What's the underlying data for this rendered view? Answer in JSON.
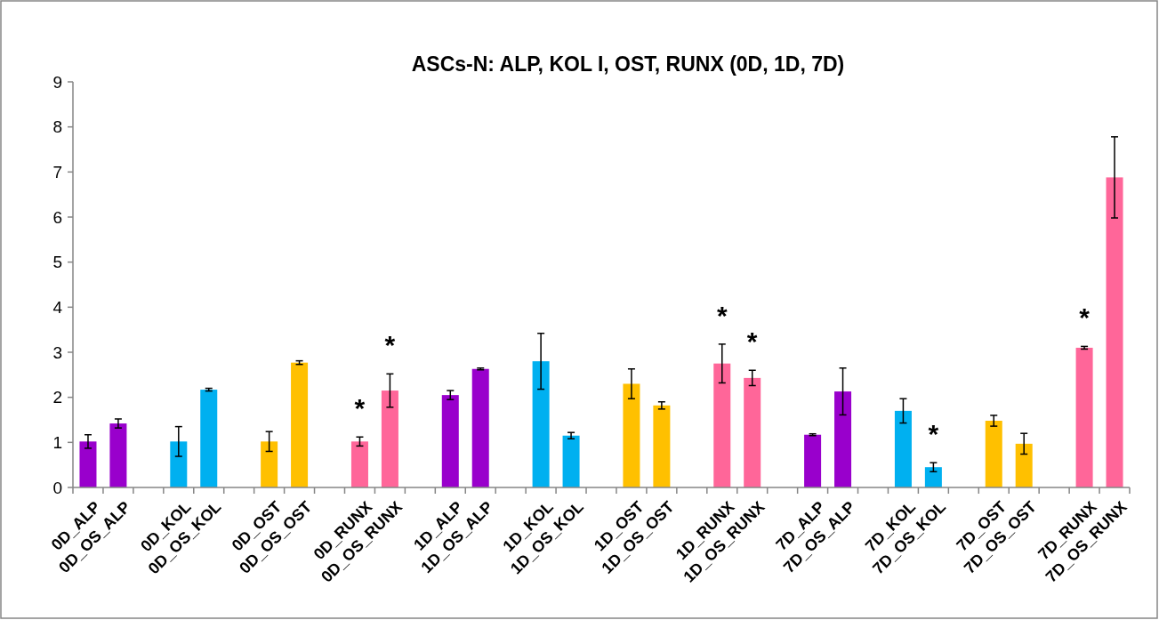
{
  "chart_data": {
    "type": "bar",
    "title": "ASCs-N: ALP, KOL I, OST, RUNX (0D, 1D, 7D)",
    "categories": [
      "0D_ALP",
      "0D_OS_ALP",
      null,
      "0D_KOL",
      "0D_OS_KOL",
      null,
      "0D_OST",
      "0D_OS_OST",
      null,
      "0D_RUNX",
      "0D_OS_RUNX",
      null,
      "1D_ALP",
      "1D_OS_ALP",
      null,
      "1D_KOL",
      "1D_OS_KOL",
      null,
      "1D_OST",
      "1D_OS_OST",
      null,
      "1D_RUNX",
      "1D_OS_RUNX",
      null,
      "7D_ALP",
      "7D_OS_ALP",
      null,
      "7D_KOL",
      "7D_OS_KOL",
      null,
      "7D_OST",
      "7D_OS_OST",
      null,
      "7D_RUNX",
      "7D_OS_RUNX"
    ],
    "values": [
      1.02,
      1.42,
      null,
      1.02,
      2.17,
      null,
      1.02,
      2.77,
      null,
      1.02,
      2.15,
      null,
      2.05,
      2.63,
      null,
      2.8,
      1.15,
      null,
      2.3,
      1.82,
      null,
      2.75,
      2.43,
      null,
      1.17,
      2.13,
      null,
      1.7,
      0.45,
      null,
      1.48,
      0.97,
      null,
      3.1,
      6.88
    ],
    "errors": [
      0.15,
      0.1,
      null,
      0.33,
      0.03,
      null,
      0.22,
      0.04,
      null,
      0.1,
      0.37,
      null,
      0.1,
      0.02,
      null,
      0.62,
      0.07,
      null,
      0.33,
      0.08,
      null,
      0.43,
      0.17,
      null,
      0.02,
      0.52,
      null,
      0.27,
      0.1,
      null,
      0.12,
      0.23,
      null,
      0.03,
      0.9
    ],
    "colors": [
      "#9900cc",
      "#9900cc",
      null,
      "#00b0f0",
      "#00b0f0",
      null,
      "#ffc000",
      "#ffc000",
      null,
      "#ff6699",
      "#ff6699",
      null,
      "#9900cc",
      "#9900cc",
      null,
      "#00b0f0",
      "#00b0f0",
      null,
      "#ffc000",
      "#ffc000",
      null,
      "#ff6699",
      "#ff6699",
      null,
      "#9900cc",
      "#9900cc",
      null,
      "#00b0f0",
      "#00b0f0",
      null,
      "#ffc000",
      "#ffc000",
      null,
      "#ff6699",
      "#ff6699"
    ],
    "ylim": [
      0,
      9
    ],
    "yticks": [
      0,
      1,
      2,
      3,
      4,
      5,
      6,
      7,
      8,
      9
    ],
    "grid": false,
    "value_labels": [
      null,
      null,
      null,
      null,
      null,
      null,
      null,
      null,
      null,
      "*",
      "*",
      null,
      null,
      null,
      null,
      null,
      null,
      null,
      null,
      null,
      null,
      "*",
      "*",
      null,
      null,
      null,
      null,
      null,
      "*",
      null,
      null,
      null,
      null,
      "*",
      null
    ]
  }
}
